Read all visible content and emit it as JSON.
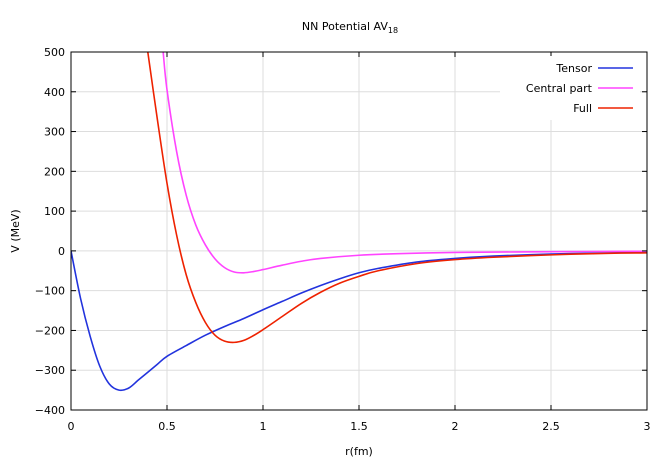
{
  "chart_data": {
    "type": "line",
    "title": "NN Potential AV",
    "title_subscript": "18",
    "xlabel": "r(fm)",
    "ylabel": "V (MeV)",
    "xlim": [
      0,
      3
    ],
    "ylim": [
      -400,
      500
    ],
    "x_ticks": [
      0,
      0.5,
      1,
      1.5,
      2,
      2.5,
      3
    ],
    "x_tick_labels": [
      "0",
      "0.5",
      "1",
      "1.5",
      "2",
      "2.5",
      "3"
    ],
    "y_ticks": [
      -400,
      -300,
      -200,
      -100,
      0,
      100,
      200,
      300,
      400,
      500
    ],
    "y_tick_labels": [
      "−400",
      "−300",
      "−200",
      "−100",
      "0",
      "100",
      "200",
      "300",
      "400",
      "500"
    ],
    "grid": true,
    "legend_position": "top-right",
    "series": [
      {
        "name": "Tensor",
        "color": "#2233dd",
        "x": [
          0,
          0.05,
          0.1,
          0.15,
          0.2,
          0.25,
          0.3,
          0.35,
          0.4,
          0.45,
          0.5,
          0.6,
          0.7,
          0.8,
          0.9,
          1.0,
          1.1,
          1.2,
          1.3,
          1.4,
          1.5,
          1.6,
          1.8,
          2.0,
          2.2,
          2.5,
          2.8,
          3.0
        ],
        "y": [
          0,
          -120,
          -215,
          -290,
          -335,
          -350,
          -345,
          -325,
          -305,
          -285,
          -265,
          -238,
          -212,
          -190,
          -170,
          -148,
          -127,
          -106,
          -87,
          -70,
          -55,
          -44,
          -28,
          -19,
          -13,
          -8,
          -5,
          -4
        ]
      },
      {
        "name": "Central part",
        "color": "#ff44ff",
        "x": [
          0.48,
          0.5,
          0.55,
          0.6,
          0.65,
          0.7,
          0.75,
          0.8,
          0.85,
          0.9,
          0.95,
          1.0,
          1.1,
          1.2,
          1.3,
          1.5,
          1.7,
          2.0,
          2.5,
          3.0
        ],
        "y": [
          500,
          405,
          250,
          140,
          65,
          15,
          -20,
          -42,
          -53,
          -55,
          -52,
          -47,
          -36,
          -26,
          -19,
          -11,
          -7,
          -4,
          -2,
          -1
        ]
      },
      {
        "name": "Full",
        "color": "#ee2200",
        "x": [
          0.4,
          0.45,
          0.5,
          0.55,
          0.6,
          0.65,
          0.7,
          0.75,
          0.8,
          0.85,
          0.9,
          0.95,
          1.0,
          1.1,
          1.2,
          1.3,
          1.4,
          1.5,
          1.6,
          1.8,
          2.0,
          2.2,
          2.5,
          2.8,
          3.0
        ],
        "y": [
          500,
          330,
          170,
          40,
          -60,
          -130,
          -180,
          -212,
          -227,
          -230,
          -225,
          -213,
          -198,
          -165,
          -132,
          -104,
          -81,
          -64,
          -50,
          -32,
          -22,
          -16,
          -10,
          -6,
          -5
        ]
      }
    ]
  }
}
